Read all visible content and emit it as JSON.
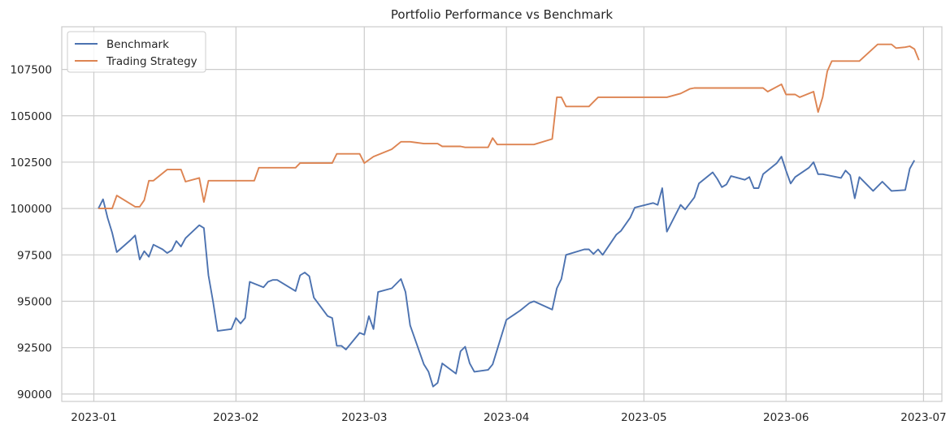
{
  "chart_data": {
    "type": "line",
    "title": "Portfolio Performance vs Benchmark",
    "xlabel": "",
    "ylabel": "",
    "x_axis": "date",
    "xlim": [
      "2022-12-25",
      "2023-07-05"
    ],
    "ylim": [
      89600,
      109800
    ],
    "x_ticks": [
      "2023-01-01",
      "2023-02-01",
      "2023-03-01",
      "2023-04-01",
      "2023-05-01",
      "2023-06-01",
      "2023-07-01"
    ],
    "x_tick_labels": [
      "2023-01",
      "2023-02",
      "2023-03",
      "2023-04",
      "2023-05",
      "2023-06",
      "2023-07"
    ],
    "y_ticks": [
      90000,
      92500,
      95000,
      97500,
      100000,
      102500,
      105000,
      107500
    ],
    "y_tick_labels": [
      "90000",
      "92500",
      "95000",
      "97500",
      "100000",
      "102500",
      "105000",
      "107500"
    ],
    "grid": true,
    "legend_position": "top-left",
    "series": [
      {
        "name": "Benchmark",
        "color": "#4c72b0",
        "points": [
          [
            "2023-01-02",
            100000
          ],
          [
            "2023-01-03",
            100500
          ],
          [
            "2023-01-04",
            99500
          ],
          [
            "2023-01-05",
            98700
          ],
          [
            "2023-01-06",
            97650
          ],
          [
            "2023-01-09",
            98300
          ],
          [
            "2023-01-10",
            98550
          ],
          [
            "2023-01-11",
            97250
          ],
          [
            "2023-01-12",
            97700
          ],
          [
            "2023-01-13",
            97400
          ],
          [
            "2023-01-14",
            98050
          ],
          [
            "2023-01-16",
            97800
          ],
          [
            "2023-01-17",
            97600
          ],
          [
            "2023-01-18",
            97750
          ],
          [
            "2023-01-19",
            98250
          ],
          [
            "2023-01-20",
            97950
          ],
          [
            "2023-01-21",
            98400
          ],
          [
            "2023-01-24",
            99100
          ],
          [
            "2023-01-25",
            98950
          ],
          [
            "2023-01-26",
            96400
          ],
          [
            "2023-01-27",
            95000
          ],
          [
            "2023-01-28",
            93400
          ],
          [
            "2023-01-31",
            93500
          ],
          [
            "2023-02-01",
            94100
          ],
          [
            "2023-02-02",
            93800
          ],
          [
            "2023-02-03",
            94100
          ],
          [
            "2023-02-04",
            96050
          ],
          [
            "2023-02-07",
            95750
          ],
          [
            "2023-02-08",
            96050
          ],
          [
            "2023-02-09",
            96150
          ],
          [
            "2023-02-10",
            96150
          ],
          [
            "2023-02-14",
            95550
          ],
          [
            "2023-02-15",
            96400
          ],
          [
            "2023-02-16",
            96550
          ],
          [
            "2023-02-17",
            96350
          ],
          [
            "2023-02-18",
            95200
          ],
          [
            "2023-02-21",
            94200
          ],
          [
            "2023-02-22",
            94100
          ],
          [
            "2023-02-23",
            92600
          ],
          [
            "2023-02-24",
            92600
          ],
          [
            "2023-02-25",
            92400
          ],
          [
            "2023-02-28",
            93300
          ],
          [
            "2023-03-01",
            93200
          ],
          [
            "2023-03-02",
            94200
          ],
          [
            "2023-03-03",
            93500
          ],
          [
            "2023-03-04",
            95500
          ],
          [
            "2023-03-07",
            95700
          ],
          [
            "2023-03-09",
            96200
          ],
          [
            "2023-03-10",
            95500
          ],
          [
            "2023-03-11",
            93700
          ],
          [
            "2023-03-14",
            91600
          ],
          [
            "2023-03-15",
            91200
          ],
          [
            "2023-03-16",
            90400
          ],
          [
            "2023-03-17",
            90600
          ],
          [
            "2023-03-18",
            91650
          ],
          [
            "2023-03-21",
            91100
          ],
          [
            "2023-03-22",
            92300
          ],
          [
            "2023-03-23",
            92550
          ],
          [
            "2023-03-24",
            91650
          ],
          [
            "2023-03-25",
            91200
          ],
          [
            "2023-03-28",
            91300
          ],
          [
            "2023-03-29",
            91600
          ],
          [
            "2023-04-01",
            94000
          ],
          [
            "2023-04-04",
            94500
          ],
          [
            "2023-04-06",
            94900
          ],
          [
            "2023-04-07",
            95000
          ],
          [
            "2023-04-11",
            94550
          ],
          [
            "2023-04-12",
            95700
          ],
          [
            "2023-04-13",
            96200
          ],
          [
            "2023-04-14",
            97500
          ],
          [
            "2023-04-18",
            97800
          ],
          [
            "2023-04-19",
            97800
          ],
          [
            "2023-04-20",
            97550
          ],
          [
            "2023-04-21",
            97800
          ],
          [
            "2023-04-22",
            97500
          ],
          [
            "2023-04-25",
            98600
          ],
          [
            "2023-04-26",
            98800
          ],
          [
            "2023-04-28",
            99500
          ],
          [
            "2023-04-29",
            100050
          ],
          [
            "2023-05-03",
            100300
          ],
          [
            "2023-05-04",
            100200
          ],
          [
            "2023-05-05",
            101100
          ],
          [
            "2023-05-06",
            98750
          ],
          [
            "2023-05-09",
            100200
          ],
          [
            "2023-05-10",
            99950
          ],
          [
            "2023-05-12",
            100600
          ],
          [
            "2023-05-13",
            101350
          ],
          [
            "2023-05-16",
            101950
          ],
          [
            "2023-05-17",
            101600
          ],
          [
            "2023-05-18",
            101150
          ],
          [
            "2023-05-19",
            101300
          ],
          [
            "2023-05-20",
            101750
          ],
          [
            "2023-05-23",
            101550
          ],
          [
            "2023-05-24",
            101700
          ],
          [
            "2023-05-25",
            101100
          ],
          [
            "2023-05-26",
            101100
          ],
          [
            "2023-05-27",
            101850
          ],
          [
            "2023-05-30",
            102450
          ],
          [
            "2023-05-31",
            102800
          ],
          [
            "2023-06-01",
            102050
          ],
          [
            "2023-06-02",
            101350
          ],
          [
            "2023-06-03",
            101700
          ],
          [
            "2023-06-06",
            102200
          ],
          [
            "2023-06-07",
            102500
          ],
          [
            "2023-06-08",
            101850
          ],
          [
            "2023-06-09",
            101850
          ],
          [
            "2023-06-13",
            101650
          ],
          [
            "2023-06-14",
            102050
          ],
          [
            "2023-06-15",
            101800
          ],
          [
            "2023-06-16",
            100550
          ],
          [
            "2023-06-17",
            101700
          ],
          [
            "2023-06-20",
            100950
          ],
          [
            "2023-06-22",
            101450
          ],
          [
            "2023-06-24",
            100950
          ],
          [
            "2023-06-27",
            101000
          ],
          [
            "2023-06-28",
            102150
          ],
          [
            "2023-06-29",
            102600
          ]
        ]
      },
      {
        "name": "Trading Strategy",
        "color": "#dd8452",
        "points": [
          [
            "2023-01-02",
            100000
          ],
          [
            "2023-01-03",
            100000
          ],
          [
            "2023-01-05",
            100000
          ],
          [
            "2023-01-06",
            100700
          ],
          [
            "2023-01-09",
            100250
          ],
          [
            "2023-01-10",
            100100
          ],
          [
            "2023-01-11",
            100100
          ],
          [
            "2023-01-12",
            100450
          ],
          [
            "2023-01-13",
            101500
          ],
          [
            "2023-01-14",
            101500
          ],
          [
            "2023-01-17",
            102100
          ],
          [
            "2023-01-19",
            102100
          ],
          [
            "2023-01-20",
            102100
          ],
          [
            "2023-01-21",
            101450
          ],
          [
            "2023-01-24",
            101650
          ],
          [
            "2023-01-25",
            100350
          ],
          [
            "2023-01-26",
            101500
          ],
          [
            "2023-02-01",
            101500
          ],
          [
            "2023-02-05",
            101500
          ],
          [
            "2023-02-06",
            102200
          ],
          [
            "2023-02-14",
            102200
          ],
          [
            "2023-02-15",
            102450
          ],
          [
            "2023-02-21",
            102450
          ],
          [
            "2023-02-22",
            102450
          ],
          [
            "2023-02-23",
            102950
          ],
          [
            "2023-02-28",
            102950
          ],
          [
            "2023-03-01",
            102450
          ],
          [
            "2023-03-03",
            102800
          ],
          [
            "2023-03-07",
            103200
          ],
          [
            "2023-03-09",
            103600
          ],
          [
            "2023-03-11",
            103600
          ],
          [
            "2023-03-14",
            103500
          ],
          [
            "2023-03-17",
            103500
          ],
          [
            "2023-03-18",
            103350
          ],
          [
            "2023-03-22",
            103350
          ],
          [
            "2023-03-23",
            103300
          ],
          [
            "2023-03-28",
            103300
          ],
          [
            "2023-03-29",
            103800
          ],
          [
            "2023-03-30",
            103450
          ],
          [
            "2023-04-07",
            103450
          ],
          [
            "2023-04-11",
            103750
          ],
          [
            "2023-04-12",
            106000
          ],
          [
            "2023-04-13",
            106000
          ],
          [
            "2023-04-14",
            105500
          ],
          [
            "2023-04-19",
            105500
          ],
          [
            "2023-04-21",
            106000
          ],
          [
            "2023-05-04",
            106000
          ],
          [
            "2023-05-06",
            106000
          ],
          [
            "2023-05-09",
            106200
          ],
          [
            "2023-05-11",
            106450
          ],
          [
            "2023-05-12",
            106500
          ],
          [
            "2023-05-27",
            106500
          ],
          [
            "2023-05-28",
            106300
          ],
          [
            "2023-05-31",
            106700
          ],
          [
            "2023-06-01",
            106150
          ],
          [
            "2023-06-03",
            106150
          ],
          [
            "2023-06-04",
            106000
          ],
          [
            "2023-06-07",
            106300
          ],
          [
            "2023-06-08",
            105200
          ],
          [
            "2023-06-09",
            106000
          ],
          [
            "2023-06-10",
            107400
          ],
          [
            "2023-06-11",
            107950
          ],
          [
            "2023-06-17",
            107950
          ],
          [
            "2023-06-21",
            108850
          ],
          [
            "2023-06-24",
            108850
          ],
          [
            "2023-06-25",
            108650
          ],
          [
            "2023-06-27",
            108700
          ],
          [
            "2023-06-28",
            108750
          ],
          [
            "2023-06-29",
            108600
          ],
          [
            "2023-06-30",
            108000
          ]
        ]
      }
    ]
  }
}
